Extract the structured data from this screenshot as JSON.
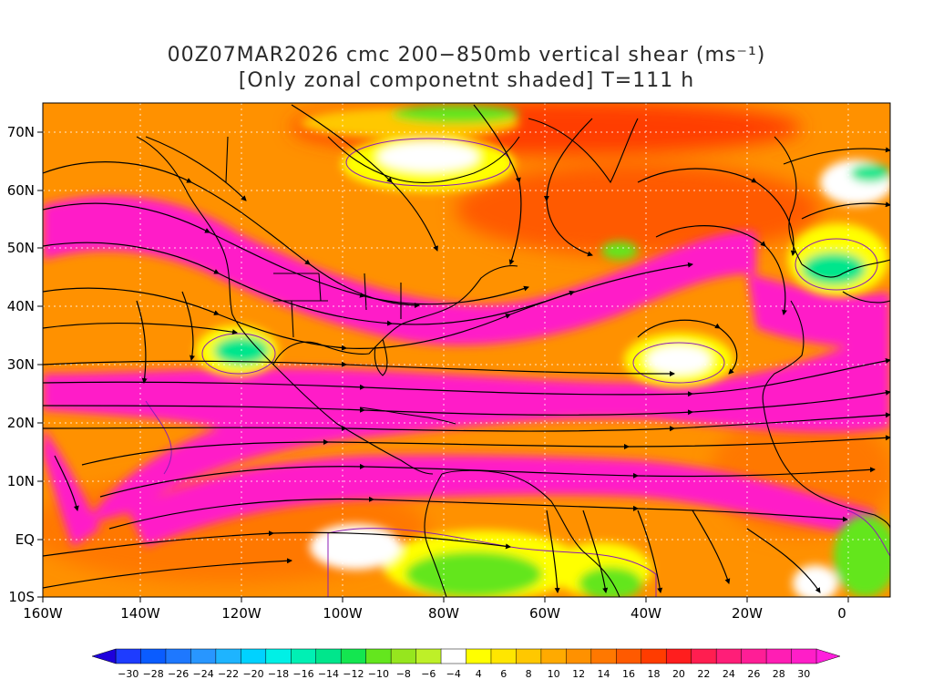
{
  "title_line1": "00Z07MAR2026 cmc 200−850mb vertical shear (ms⁻¹)",
  "title_line2": "[Only zonal componetnt shaded] T=111 h",
  "lat_labels": [
    "70N",
    "60N",
    "50N",
    "40N",
    "30N",
    "20N",
    "10N",
    "EQ",
    "10S"
  ],
  "lon_labels": [
    "160W",
    "140W",
    "120W",
    "100W",
    "80W",
    "60W",
    "40W",
    "20W",
    "0"
  ],
  "colorbar": {
    "labels": [
      "−30",
      "−28",
      "−26",
      "−24",
      "−22",
      "−20",
      "−18",
      "−16",
      "−14",
      "−12",
      "−10",
      "−8",
      "−6",
      "−4",
      "4",
      "6",
      "8",
      "10",
      "12",
      "14",
      "16",
      "18",
      "20",
      "22",
      "24",
      "26",
      "28",
      "30"
    ],
    "colors": [
      "#1e3cff",
      "#0a5cff",
      "#1e78ff",
      "#2896ff",
      "#1eb4ff",
      "#00d2ff",
      "#00f0e6",
      "#00f0b4",
      "#00e68c",
      "#14e650",
      "#64e61e",
      "#96e61e",
      "#bef028",
      "#ffffff",
      "#ffff00",
      "#ffe600",
      "#ffc800",
      "#ffaa00",
      "#ff9100",
      "#ff7800",
      "#ff5a00",
      "#ff3c00",
      "#ff1e1e",
      "#ff1e50",
      "#ff1e78",
      "#ff1e96",
      "#ff1eb4",
      "#ff1ec8"
    ]
  },
  "colors": {
    "strong_positive": "#ff1ec8",
    "light_positive": "#ff9100",
    "weak_positive": "#ffff00",
    "near_zero": "#ffffff",
    "negative": "#64e61e",
    "strong_negative": "#00e68c",
    "coast_lines": "#000000",
    "contour_lines": "#8c1eb4",
    "grid_lines": "#ffffff"
  }
}
